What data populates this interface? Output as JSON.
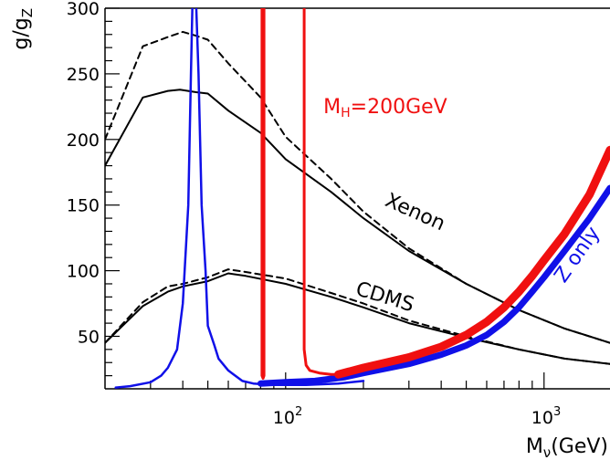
{
  "chart_data": {
    "type": "line",
    "x_scale": "log",
    "xlim": [
      20,
      1800
    ],
    "ylim": [
      10,
      300
    ],
    "grid": false,
    "xlabel": {
      "main": "M",
      "sub": "ν",
      "rest": "(GeV)"
    },
    "ylabel": {
      "main": "g/g",
      "sub": "Z"
    },
    "y_ticks": [
      50,
      100,
      150,
      200,
      250,
      300
    ],
    "x_major_ticks": [
      {
        "value": 100,
        "base": "10",
        "exp": "2"
      },
      {
        "value": 1000,
        "base": "10",
        "exp": "3"
      }
    ],
    "colors": {
      "black": "#000000",
      "blue": "#1010e8",
      "red": "#f01010"
    },
    "annotations": [
      {
        "name": "higgs-label",
        "main": "M",
        "sub": "H",
        "rest": "=200GeV",
        "color": "#f01010",
        "x": 140,
        "y": 220
      },
      {
        "name": "xenon-label",
        "text": "Xenon",
        "color": "#000000",
        "x": 240,
        "y": 150,
        "angle": 24
      },
      {
        "name": "cdms-label",
        "text": "CDMS",
        "color": "#000000",
        "x": 185,
        "y": 82,
        "angle": 17
      },
      {
        "name": "z-only-label",
        "text": "Z only",
        "color": "#1010e8",
        "x": 1200,
        "y": 90,
        "angle": -55
      }
    ],
    "series": [
      {
        "key": "xenon-solid",
        "color": "#000000",
        "width": 2,
        "dash": "",
        "points": [
          [
            20,
            180
          ],
          [
            28,
            232
          ],
          [
            35,
            237
          ],
          [
            39,
            238
          ],
          [
            45,
            236
          ],
          [
            50,
            235
          ],
          [
            60,
            222
          ],
          [
            80,
            205
          ],
          [
            100,
            185
          ],
          [
            150,
            160
          ],
          [
            200,
            140
          ],
          [
            300,
            115
          ],
          [
            500,
            90
          ],
          [
            800,
            70
          ],
          [
            1200,
            56
          ],
          [
            1800,
            45
          ]
        ]
      },
      {
        "key": "xenon-dashed",
        "color": "#000000",
        "width": 2,
        "dash": "7,5",
        "points": [
          [
            20,
            200
          ],
          [
            28,
            271
          ],
          [
            35,
            278
          ],
          [
            40,
            282
          ],
          [
            45,
            279
          ],
          [
            50,
            276
          ],
          [
            60,
            258
          ],
          [
            80,
            232
          ],
          [
            100,
            202
          ],
          [
            150,
            170
          ],
          [
            200,
            145
          ],
          [
            300,
            117
          ],
          [
            500,
            90
          ],
          [
            800,
            70
          ],
          [
            1200,
            56
          ],
          [
            1800,
            45
          ]
        ]
      },
      {
        "key": "cdms-solid",
        "color": "#000000",
        "width": 2,
        "dash": "",
        "points": [
          [
            20,
            45
          ],
          [
            28,
            73
          ],
          [
            35,
            84
          ],
          [
            40,
            88
          ],
          [
            50,
            92
          ],
          [
            60,
            98
          ],
          [
            70,
            96
          ],
          [
            100,
            90
          ],
          [
            150,
            80
          ],
          [
            200,
            72
          ],
          [
            300,
            60
          ],
          [
            500,
            49
          ],
          [
            800,
            40
          ],
          [
            1200,
            33
          ],
          [
            1800,
            29
          ]
        ]
      },
      {
        "key": "cdms-dashed",
        "color": "#000000",
        "width": 2,
        "dash": "7,5",
        "points": [
          [
            20,
            45
          ],
          [
            28,
            76
          ],
          [
            35,
            88
          ],
          [
            40,
            90
          ],
          [
            50,
            95
          ],
          [
            60,
            101
          ],
          [
            70,
            99
          ],
          [
            100,
            94
          ],
          [
            150,
            83
          ],
          [
            200,
            75
          ],
          [
            300,
            62
          ],
          [
            500,
            50
          ],
          [
            800,
            40
          ],
          [
            1200,
            33
          ],
          [
            1800,
            29
          ]
        ]
      },
      {
        "key": "z-only",
        "color": "#1010e8",
        "width": 7,
        "dash": "",
        "points": [
          [
            80,
            14
          ],
          [
            100,
            15
          ],
          [
            130,
            16
          ],
          [
            170,
            19
          ],
          [
            200,
            22
          ],
          [
            300,
            29
          ],
          [
            400,
            36
          ],
          [
            500,
            43
          ],
          [
            600,
            51
          ],
          [
            700,
            61
          ],
          [
            800,
            72
          ],
          [
            900,
            84
          ],
          [
            1000,
            95
          ],
          [
            1200,
            115
          ],
          [
            1500,
            140
          ],
          [
            1800,
            163
          ]
        ]
      },
      {
        "key": "higgs",
        "color": "#f01010",
        "width": 9,
        "dash": "",
        "points": [
          [
            160,
            21
          ],
          [
            200,
            26
          ],
          [
            300,
            34
          ],
          [
            400,
            42
          ],
          [
            500,
            51
          ],
          [
            600,
            61
          ],
          [
            700,
            72
          ],
          [
            800,
            84
          ],
          [
            900,
            96
          ],
          [
            1000,
            108
          ],
          [
            1200,
            128
          ],
          [
            1500,
            158
          ],
          [
            1800,
            192
          ]
        ]
      },
      {
        "key": "blue-peak",
        "color": "#1010e8",
        "width": 2.5,
        "dash": "",
        "points": [
          [
            22,
            11
          ],
          [
            25,
            12
          ],
          [
            30,
            15
          ],
          [
            33,
            20
          ],
          [
            35,
            26
          ],
          [
            38,
            40
          ],
          [
            40,
            75
          ],
          [
            42,
            150
          ],
          [
            43,
            250
          ],
          [
            43.6,
            305
          ],
          [
            45,
            305
          ],
          [
            46,
            250
          ],
          [
            47.3,
            150
          ],
          [
            49,
            100
          ],
          [
            50,
            58
          ],
          [
            53,
            43
          ],
          [
            55,
            33
          ],
          [
            60,
            24
          ],
          [
            68,
            16
          ],
          [
            75,
            14
          ],
          [
            90,
            13
          ],
          [
            120,
            13
          ],
          [
            160,
            14
          ],
          [
            200,
            16
          ]
        ]
      },
      {
        "key": "red-left",
        "color": "#f01010",
        "width": 3,
        "dash": "",
        "points": [
          [
            81,
            305
          ],
          [
            81,
            20
          ],
          [
            81.8,
            18
          ],
          [
            82.5,
            20
          ],
          [
            82.5,
            305
          ]
        ]
      },
      {
        "key": "red-right",
        "color": "#f01010",
        "width": 3,
        "dash": "",
        "points": [
          [
            118,
            305
          ],
          [
            118,
            40
          ],
          [
            120,
            28
          ],
          [
            124,
            24
          ],
          [
            135,
            22
          ],
          [
            150,
            21
          ],
          [
            165,
            21
          ]
        ]
      }
    ]
  }
}
